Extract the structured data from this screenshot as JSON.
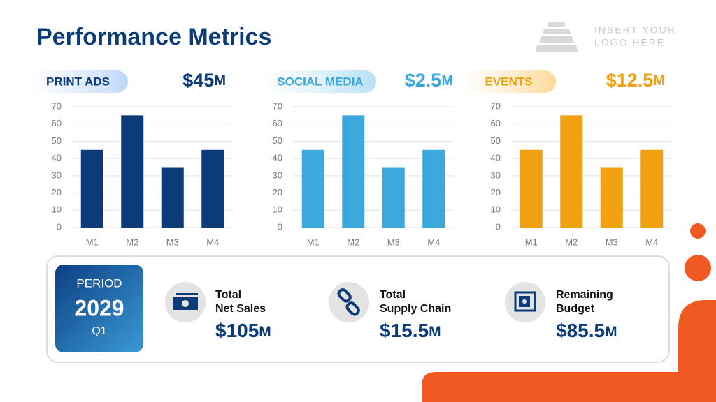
{
  "header": {
    "title": "Performance Metrics",
    "logo": [
      "INSERT YOUR",
      "LOGO HERE"
    ]
  },
  "chart_data": [
    {
      "type": "bar",
      "title": "PRINT ADS",
      "amount": "$45",
      "unit": "M",
      "categories": [
        "M1",
        "M2",
        "M3",
        "M4"
      ],
      "values": [
        45,
        65,
        35,
        45
      ],
      "color": "#0b3b78",
      "ylim": [
        0,
        70
      ],
      "yticks": [
        0,
        10,
        20,
        30,
        40,
        50,
        60,
        70
      ],
      "grid": true
    },
    {
      "type": "bar",
      "title": "SOCIAL MEDIA",
      "amount": "$2.5",
      "unit": "M",
      "categories": [
        "M1",
        "M2",
        "M3",
        "M4"
      ],
      "values": [
        45,
        65,
        35,
        45
      ],
      "color": "#3ba7dc",
      "ylim": [
        0,
        70
      ],
      "yticks": [
        0,
        10,
        20,
        30,
        40,
        50,
        60,
        70
      ],
      "grid": true
    },
    {
      "type": "bar",
      "title": "EVENTS",
      "amount": "$12.5",
      "unit": "M",
      "categories": [
        "M1",
        "M2",
        "M3",
        "M4"
      ],
      "values": [
        45,
        65,
        35,
        45
      ],
      "color": "#f0a010",
      "ylim": [
        0,
        70
      ],
      "yticks": [
        0,
        10,
        20,
        30,
        40,
        50,
        60,
        70
      ],
      "grid": true
    }
  ],
  "summary": {
    "period": {
      "label": "PERIOD",
      "year": "2029",
      "quarter": "Q1"
    },
    "kpis": [
      {
        "label": [
          "Total",
          "Net Sales"
        ],
        "amount": "$105",
        "unit": "M"
      },
      {
        "label": [
          "Total",
          "Supply Chain"
        ],
        "amount": "$15.5",
        "unit": "M"
      },
      {
        "label": [
          "Remaining",
          "Budget"
        ],
        "amount": "$85.5",
        "unit": "M"
      }
    ]
  }
}
